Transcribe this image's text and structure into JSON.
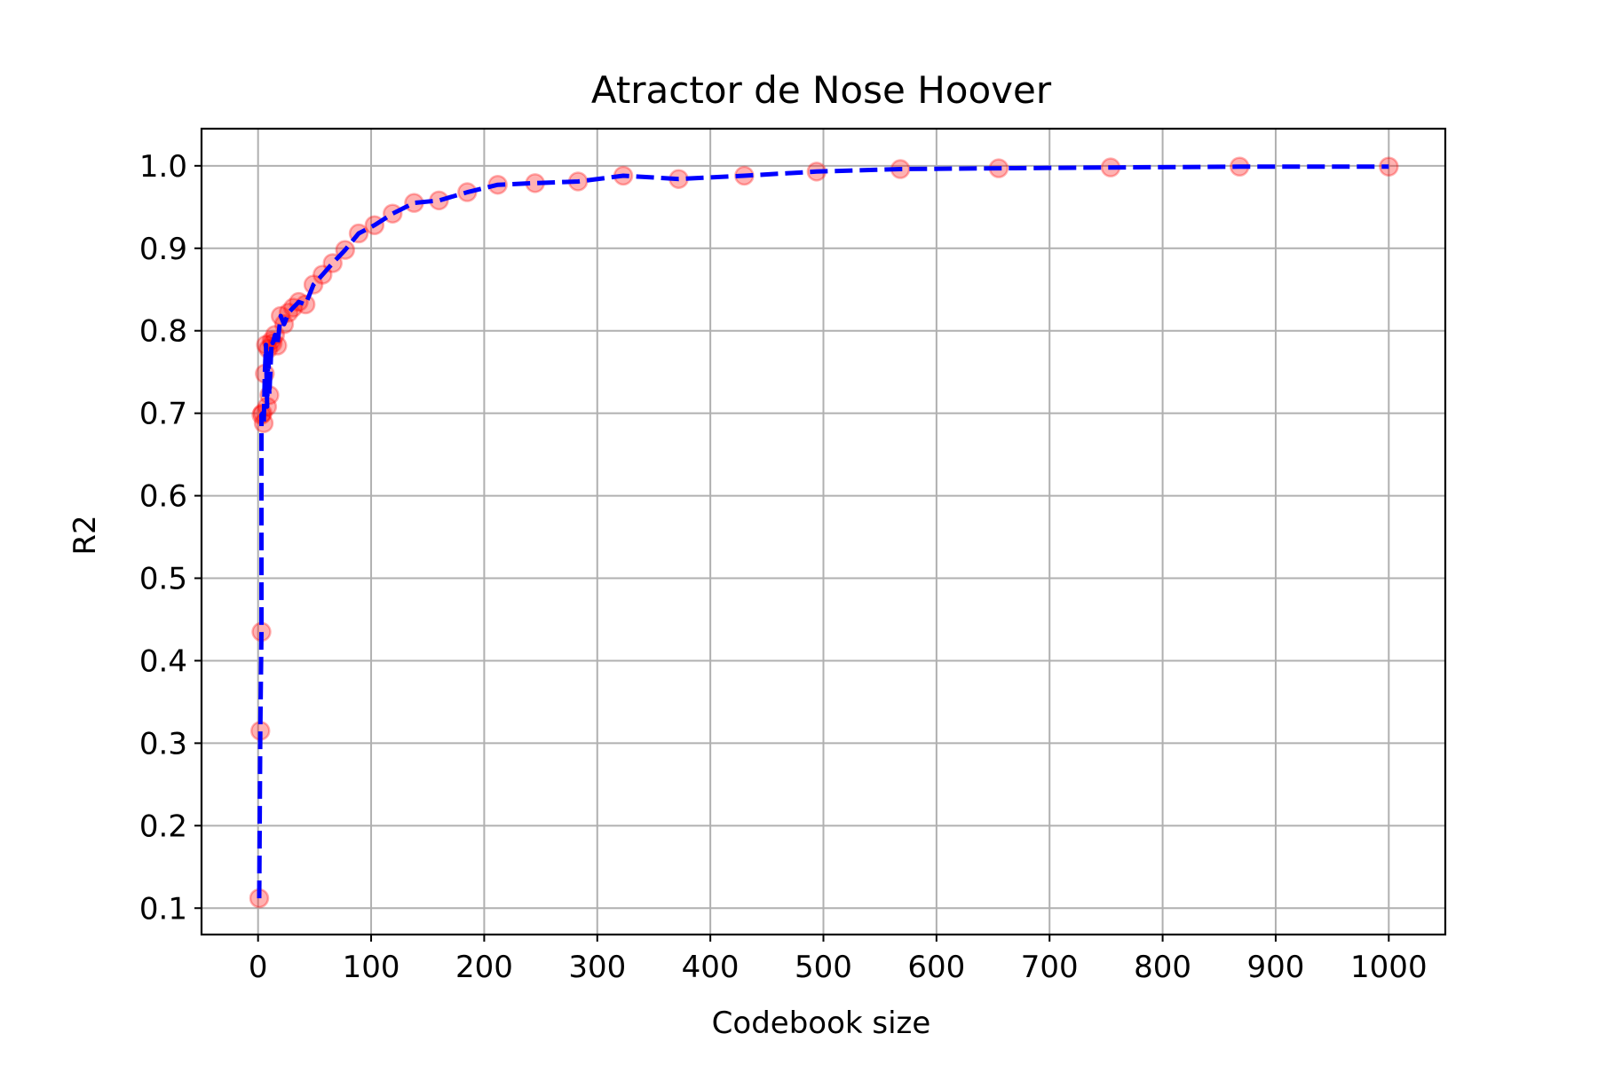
{
  "chart_data": {
    "type": "line",
    "title": "Atractor de Nose Hoover",
    "xlabel": "Codebook size",
    "ylabel": "R2",
    "xlim": [
      -50,
      1050
    ],
    "ylim": [
      0.068,
      1.045
    ],
    "xticks": [
      0,
      100,
      200,
      300,
      400,
      500,
      600,
      700,
      800,
      900,
      1000
    ],
    "yticks": [
      0.1,
      0.2,
      0.3,
      0.4,
      0.5,
      0.6,
      0.7,
      0.8,
      0.9,
      1.0
    ],
    "xtick_labels": [
      "0",
      "100",
      "200",
      "300",
      "400",
      "500",
      "600",
      "700",
      "800",
      "900",
      "1000"
    ],
    "ytick_labels": [
      "0.1",
      "0.2",
      "0.3",
      "0.4",
      "0.5",
      "0.6",
      "0.7",
      "0.8",
      "0.9",
      "1.0"
    ],
    "grid": true,
    "series": [
      {
        "line_color": "#0000ff",
        "line_style": "dashed",
        "marker_color": "#ff0000",
        "marker_opacity": 0.3,
        "x": [
          1,
          2,
          3,
          3,
          4,
          5,
          6,
          7,
          8,
          9,
          10,
          12,
          13,
          15,
          17,
          20,
          23,
          27,
          31,
          36,
          42,
          49,
          57,
          66,
          77,
          89,
          103,
          119,
          138,
          160,
          185,
          212,
          245,
          283,
          323,
          372,
          430,
          494,
          568,
          655,
          754,
          868,
          1000
        ],
        "y": [
          0.112,
          0.315,
          0.435,
          0.698,
          0.7,
          0.688,
          0.748,
          0.783,
          0.708,
          0.778,
          0.722,
          0.788,
          0.785,
          0.795,
          0.782,
          0.818,
          0.808,
          0.822,
          0.828,
          0.835,
          0.832,
          0.856,
          0.868,
          0.882,
          0.898,
          0.918,
          0.928,
          0.942,
          0.955,
          0.958,
          0.968,
          0.977,
          0.979,
          0.981,
          0.988,
          0.984,
          0.988,
          0.993,
          0.996,
          0.997,
          0.998,
          0.999,
          0.999
        ]
      }
    ]
  }
}
